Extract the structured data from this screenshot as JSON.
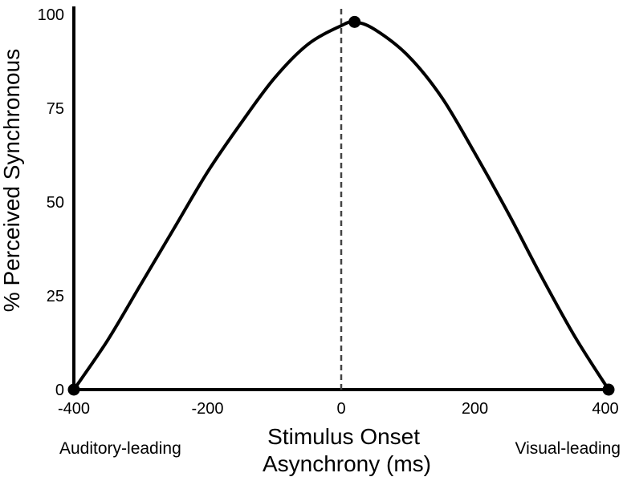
{
  "chart_data": {
    "type": "line",
    "title": "",
    "xlabel_lines": [
      "Stimulus Onset",
      "Asynchrony (ms)"
    ],
    "ylabel": "% Perceived Synchronous",
    "xlim": [
      -400,
      400
    ],
    "ylim": [
      0,
      100
    ],
    "xticks": [
      -400,
      -200,
      0,
      200,
      400
    ],
    "yticks": [
      0,
      25,
      50,
      75,
      100
    ],
    "grid": false,
    "side_labels": {
      "left": "Auditory-leading",
      "right": "Visual-leading"
    },
    "reference_line": {
      "x": 0,
      "style": "dashed"
    },
    "series": [
      {
        "x": [
          -400,
          -350,
          -300,
          -250,
          -200,
          -150,
          -100,
          -50,
          0,
          20,
          50,
          100,
          150,
          200,
          250,
          300,
          350,
          400
        ],
        "y": [
          0,
          13,
          28,
          43,
          58,
          71,
          83,
          92,
          97,
          98,
          96,
          89,
          78,
          63,
          47,
          30,
          14,
          0
        ]
      }
    ],
    "markers": [
      {
        "x": -400,
        "y": 0
      },
      {
        "x": 20,
        "y": 98
      },
      {
        "x": 400,
        "y": 0
      }
    ],
    "colors": {
      "line": "#000000",
      "marker": "#000000",
      "reference_line": "#444444"
    }
  }
}
